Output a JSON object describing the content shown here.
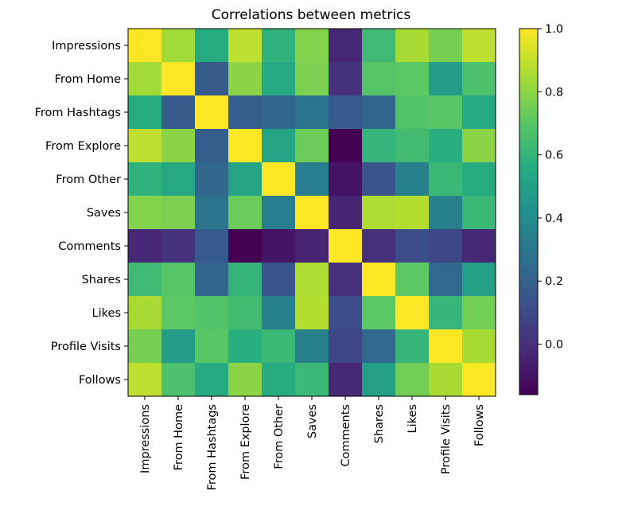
{
  "chart_data": {
    "type": "heatmap",
    "title": "Correlations between metrics",
    "colormap": "viridis",
    "vmin": -0.16,
    "vmax": 1.0,
    "labels": [
      "Impressions",
      "From Home",
      "From Hashtags",
      "From Explore",
      "From Other",
      "Saves",
      "Comments",
      "Shares",
      "Likes",
      "Profile Visits",
      "Follows"
    ],
    "matrix": [
      [
        1.0,
        0.84,
        0.56,
        0.89,
        0.59,
        0.78,
        -0.03,
        0.63,
        0.85,
        0.76,
        0.89
      ],
      [
        0.84,
        1.0,
        0.18,
        0.8,
        0.54,
        0.77,
        0.01,
        0.69,
        0.71,
        0.48,
        0.67
      ],
      [
        0.56,
        0.18,
        1.0,
        0.19,
        0.23,
        0.29,
        0.17,
        0.22,
        0.68,
        0.7,
        0.55
      ],
      [
        0.89,
        0.8,
        0.19,
        1.0,
        0.52,
        0.74,
        -0.16,
        0.6,
        0.64,
        0.57,
        0.8
      ],
      [
        0.59,
        0.54,
        0.23,
        0.52,
        1.0,
        0.33,
        -0.1,
        0.15,
        0.35,
        0.62,
        0.56
      ],
      [
        0.78,
        0.77,
        0.29,
        0.74,
        0.33,
        1.0,
        -0.04,
        0.86,
        0.87,
        0.35,
        0.62
      ],
      [
        -0.03,
        0.01,
        0.17,
        -0.16,
        -0.1,
        -0.04,
        1.0,
        0.0,
        0.12,
        0.09,
        -0.03
      ],
      [
        0.63,
        0.69,
        0.22,
        0.6,
        0.15,
        0.86,
        0.0,
        1.0,
        0.71,
        0.24,
        0.5
      ],
      [
        0.85,
        0.71,
        0.68,
        0.64,
        0.35,
        0.87,
        0.12,
        0.71,
        1.0,
        0.61,
        0.75
      ],
      [
        0.76,
        0.48,
        0.7,
        0.57,
        0.62,
        0.35,
        0.09,
        0.24,
        0.61,
        1.0,
        0.85
      ],
      [
        0.89,
        0.67,
        0.55,
        0.8,
        0.56,
        0.62,
        -0.03,
        0.5,
        0.75,
        0.85,
        1.0
      ]
    ],
    "colorbar_ticks": [
      "1.0",
      "0.8",
      "0.6",
      "0.4",
      "0.2",
      "0.0"
    ],
    "colorbar_tick_values": [
      1.0,
      0.8,
      0.6,
      0.4,
      0.2,
      0.0
    ]
  }
}
